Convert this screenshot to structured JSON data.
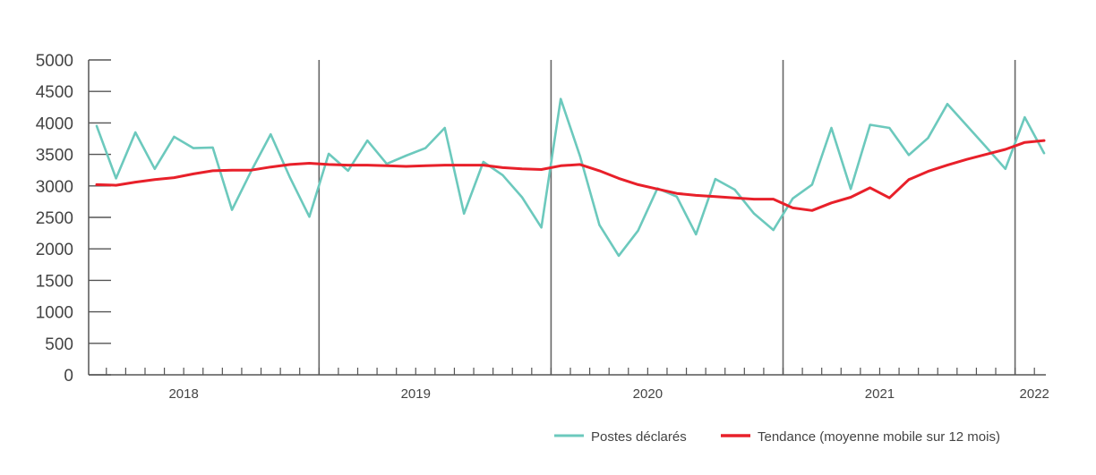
{
  "chart_data": {
    "type": "line",
    "title": "",
    "xlabel": "",
    "ylabel": "",
    "ylim": [
      0,
      5000
    ],
    "y_ticks": [
      0,
      500,
      1000,
      1500,
      2000,
      2500,
      3000,
      3500,
      4000,
      4500,
      5000
    ],
    "x_start": "2017-09",
    "year_labels": [
      {
        "label": "2018",
        "month_index": 4.5
      },
      {
        "label": "2019",
        "month_index": 16.5
      },
      {
        "label": "2020",
        "month_index": 28.5
      },
      {
        "label": "2021",
        "month_index": 40.5
      },
      {
        "label": "2022",
        "month_index": 48.5
      }
    ],
    "year_separators": [
      11.5,
      23.5,
      35.5,
      47.5
    ],
    "legend_position": "bottom-right",
    "colors": {
      "postes": "#6cc9bd",
      "tendance": "#e8202a",
      "axis": "#555555"
    },
    "series": [
      {
        "name": "Postes déclarés",
        "key": "postes",
        "values": [
          3950,
          3120,
          3850,
          3270,
          3780,
          3600,
          3610,
          2620,
          3240,
          3820,
          3130,
          2510,
          3510,
          3240,
          3720,
          3350,
          3480,
          3600,
          3920,
          2560,
          3380,
          3170,
          2820,
          2340,
          4380,
          3470,
          2380,
          1890,
          2290,
          2960,
          2830,
          2230,
          3110,
          2940,
          2560,
          2300,
          2800,
          3020,
          3920,
          2950,
          3970,
          3920,
          3490,
          3760,
          4300,
          3960,
          3620,
          3270,
          4090,
          3520
        ]
      },
      {
        "name": "Tendance (moyenne mobile sur 12 mois)",
        "key": "tendance",
        "values": [
          3020,
          3010,
          3060,
          3100,
          3130,
          3190,
          3240,
          3250,
          3250,
          3300,
          3340,
          3360,
          3340,
          3330,
          3330,
          3320,
          3310,
          3320,
          3330,
          3330,
          3330,
          3290,
          3270,
          3260,
          3320,
          3340,
          3240,
          3120,
          3020,
          2950,
          2880,
          2850,
          2830,
          2810,
          2790,
          2790,
          2650,
          2610,
          2730,
          2820,
          2970,
          2810,
          3100,
          3230,
          3330,
          3420,
          3500,
          3580,
          3690,
          3720
        ]
      }
    ]
  }
}
